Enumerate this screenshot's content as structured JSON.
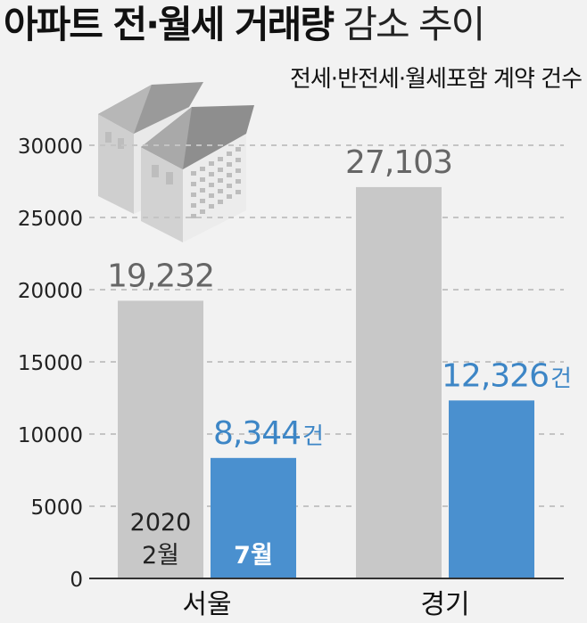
{
  "header": {
    "title_bold": "아파트 전·월세 거래량",
    "title_light": " 감소 추이",
    "subtitle": "전세·반전세·월세포함 계약 건수"
  },
  "chart_data": {
    "type": "bar",
    "title": "아파트 전·월세 거래량 감소 추이",
    "subtitle": "전세·반전세·월세포함 계약 건수",
    "categories": [
      "서울",
      "경기"
    ],
    "series": [
      {
        "name": "2020 2월",
        "values": [
          19232,
          27103
        ],
        "labels": [
          "19,232",
          "27,103"
        ],
        "color": "#c8c8c8"
      },
      {
        "name": "7월",
        "values": [
          8344,
          12326
        ],
        "labels": [
          "8,344",
          "12,326"
        ],
        "color": "#4a90cf"
      }
    ],
    "unit_suffix": "건",
    "ylim": [
      0,
      30000
    ],
    "yticks": [
      0,
      5000,
      10000,
      15000,
      20000,
      25000,
      30000
    ],
    "grid": true,
    "series_label_placement": "inside-bottom-of-first-category"
  }
}
